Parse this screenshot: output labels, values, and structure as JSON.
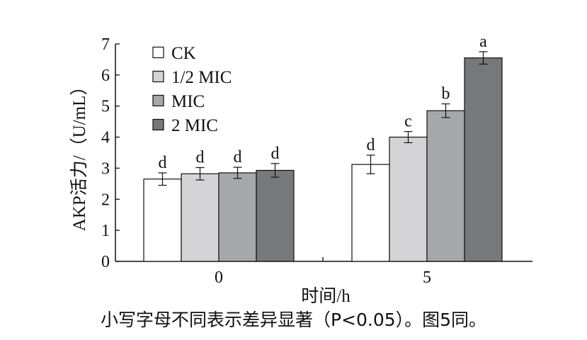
{
  "chart_data": {
    "type": "bar",
    "xlabel": "时间/h",
    "ylabel": "AKP活力/（U/mL）",
    "ylim": [
      0,
      7
    ],
    "yticks": [
      "0",
      "1",
      "2",
      "3",
      "4",
      "5",
      "6",
      "7"
    ],
    "categories": [
      "0",
      "5"
    ],
    "legend_position": "top-left",
    "grid": false,
    "series": [
      {
        "name": "CK",
        "color": "#ffffff",
        "values": [
          2.65,
          3.12
        ],
        "errors": [
          0.2,
          0.3
        ],
        "letters": [
          "d",
          "d"
        ]
      },
      {
        "name": "1/2 MIC",
        "color": "#d4d4d6",
        "values": [
          2.82,
          4.0
        ],
        "errors": [
          0.2,
          0.18
        ],
        "letters": [
          "d",
          "c"
        ]
      },
      {
        "name": "MIC",
        "color": "#a6a7ab",
        "values": [
          2.85,
          4.85
        ],
        "errors": [
          0.18,
          0.22
        ],
        "letters": [
          "d",
          "b"
        ]
      },
      {
        "name": "2 MIC",
        "color": "#77787c",
        "values": [
          2.93,
          6.55
        ],
        "errors": [
          0.22,
          0.2
        ],
        "letters": [
          "d",
          "a"
        ]
      }
    ]
  },
  "caption": "小写字母不同表示差异显著（P<0.05）。图5同。"
}
